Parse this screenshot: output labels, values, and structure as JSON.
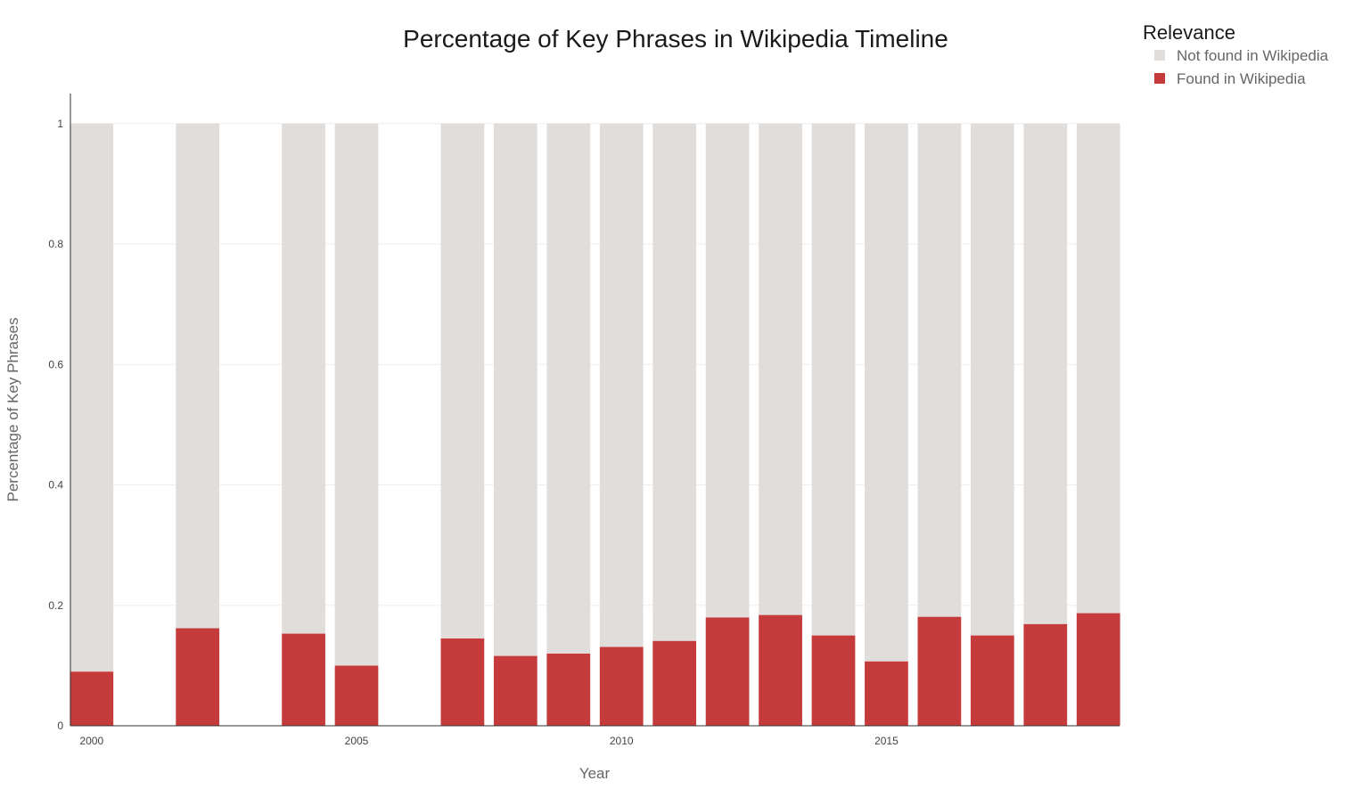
{
  "chart_data": {
    "type": "bar",
    "stacked": true,
    "title": "Percentage of Key Phrases in Wikipedia Timeline",
    "xlabel": "Year",
    "ylabel": "Percentage of Key Phrases",
    "xlim": [
      1999.6,
      2019.4
    ],
    "ylim": [
      0,
      1.05
    ],
    "xticks": [
      2000,
      2005,
      2010,
      2015
    ],
    "yticks": [
      0,
      0.2,
      0.4,
      0.6,
      0.8,
      1
    ],
    "ytick_labels": [
      "0",
      "0.2",
      "0.4",
      "0.6",
      "0.8",
      "1"
    ],
    "grid": true,
    "legend": {
      "title": "Relevance",
      "position": "top-right"
    },
    "x": [
      2000,
      2002,
      2004,
      2005,
      2007,
      2008,
      2009,
      2010,
      2011,
      2012,
      2013,
      2014,
      2015,
      2016,
      2017,
      2018,
      2019
    ],
    "series": [
      {
        "name": "Found in Wikipedia",
        "color": "#c53b3c",
        "values": [
          0.09,
          0.162,
          0.153,
          0.1,
          0.145,
          0.116,
          0.12,
          0.131,
          0.141,
          0.18,
          0.184,
          0.15,
          0.107,
          0.181,
          0.15,
          0.169,
          0.187
        ]
      },
      {
        "name": "Not found in Wikipedia",
        "color": "#e1dddb",
        "values": [
          0.91,
          0.838,
          0.847,
          0.9,
          0.855,
          0.884,
          0.88,
          0.869,
          0.859,
          0.82,
          0.816,
          0.85,
          0.893,
          0.819,
          0.85,
          0.831,
          0.813
        ]
      }
    ]
  }
}
